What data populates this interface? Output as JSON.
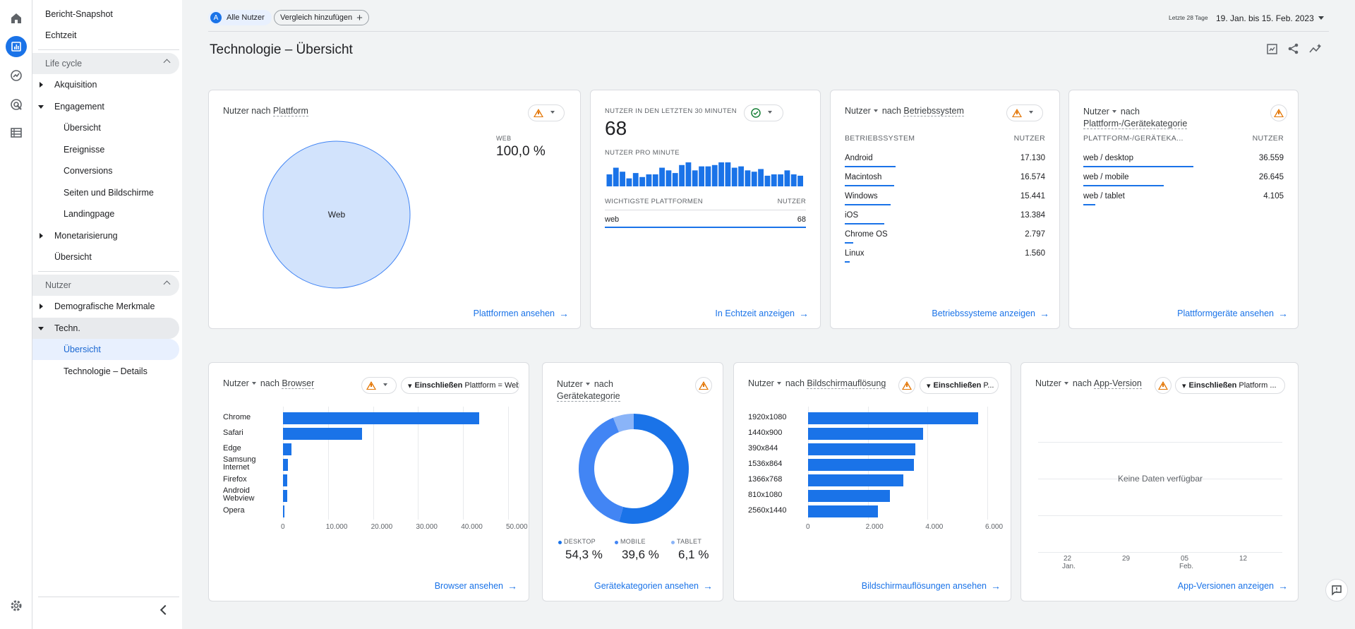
{
  "rail": {
    "icons": [
      "home-icon",
      "reports-icon",
      "explore-icon",
      "advertising-icon",
      "list-icon",
      "settings-icon"
    ]
  },
  "sidebar": {
    "top_items": [
      "Bericht-Snapshot",
      "Echtzeit"
    ],
    "lifecycle": {
      "header": "Life cycle",
      "akquisition": "Akquisition",
      "engagement": "Engagement",
      "engagement_items": [
        "Übersicht",
        "Ereignisse",
        "Conversions",
        "Seiten und Bildschirme",
        "Landingpage"
      ],
      "monetarisierung": "Monetarisierung",
      "uebersicht": "Übersicht"
    },
    "nutzer": {
      "header": "Nutzer",
      "demografie": "Demografische Merkmale",
      "techn": "Techn.",
      "techn_items": [
        "Übersicht",
        "Technologie – Details"
      ]
    }
  },
  "header": {
    "segment_letter": "A",
    "segment_label": "Alle Nutzer",
    "compare_label": "Vergleich hinzufügen",
    "date_prefix": "Letzte 28 Tage",
    "date_range": "19. Jan. bis 15. Feb. 2023"
  },
  "page": {
    "title": "Technologie – Übersicht"
  },
  "cards": {
    "platform": {
      "title_a": "Nutzer nach ",
      "title_b": "Plattform",
      "legend_label": "WEB",
      "legend_value": "100,0 %",
      "pie_label": "Web",
      "link": "Plattformen ansehen"
    },
    "realtime": {
      "title": "NUTZER IN DEN LETZTEN 30 MINUTEN",
      "value": "68",
      "per_minute": "NUTZER PRO MINUTE",
      "col1": "WICHTIGSTE PLATTFORMEN",
      "col2": "NUTZER",
      "row_label": "web",
      "row_value": "68",
      "link": "In Echtzeit anzeigen"
    },
    "os": {
      "metric": "Nutzer",
      "nach": "nach",
      "dim": "Betriebssystem",
      "col1": "BETRIEBSSYSTEM",
      "col2": "NUTZER",
      "rows": [
        {
          "label": "Android",
          "value": "17.130",
          "frac": 1.0
        },
        {
          "label": "Macintosh",
          "value": "16.574",
          "frac": 0.968
        },
        {
          "label": "Windows",
          "value": "15.441",
          "frac": 0.901
        },
        {
          "label": "iOS",
          "value": "13.384",
          "frac": 0.781
        },
        {
          "label": "Chrome OS",
          "value": "2.797",
          "frac": 0.163
        },
        {
          "label": "Linux",
          "value": "1.560",
          "frac": 0.091
        }
      ],
      "link": "Betriebssysteme anzeigen"
    },
    "device": {
      "metric": "Nutzer",
      "nach": "nach",
      "dim": "Plattform-/Gerätekategorie",
      "col1": "PLATTFORM-/GERÄTEKA...",
      "col2": "NUTZER",
      "rows": [
        {
          "label": "web / desktop",
          "value": "36.559",
          "frac": 1.0
        },
        {
          "label": "web / mobile",
          "value": "26.645",
          "frac": 0.729
        },
        {
          "label": "web / tablet",
          "value": "4.105",
          "frac": 0.112
        }
      ],
      "link": "Plattformgeräte ansehen"
    },
    "browser": {
      "metric": "Nutzer",
      "nach": "nach",
      "dim": "Browser",
      "filter_bold": "Einschließen",
      "filter_rest": "Plattform = Web",
      "link": "Browser ansehen"
    },
    "devcat": {
      "metric": "Nutzer",
      "nach": "nach",
      "dim": "Gerätekategorie",
      "link": "Gerätekategorien ansehen",
      "legend": [
        {
          "label": "DESKTOP",
          "value": "54,3 %"
        },
        {
          "label": "MOBILE",
          "value": "39,6 %"
        },
        {
          "label": "TABLET",
          "value": "6,1 %"
        }
      ]
    },
    "resolution": {
      "metric": "Nutzer",
      "nach": "nach",
      "dim": "Bildschirmauflösung",
      "filter_bold": "Einschließen",
      "filter_rest": "P...",
      "link": "Bildschirmauflösungen ansehen"
    },
    "appver": {
      "metric": "Nutzer",
      "nach": "nach",
      "dim": "App-Version",
      "filter_bold": "Einschließen",
      "filter_rest": "Platform ...",
      "no_data": "Keine Daten verfügbar",
      "x_ticks": [
        {
          "day": "22",
          "month": "Jan."
        },
        {
          "day": "29",
          "month": ""
        },
        {
          "day": "05",
          "month": "Feb."
        },
        {
          "day": "12",
          "month": ""
        }
      ],
      "link": "App-Versionen anzeigen"
    }
  },
  "colors": {
    "accent": "#1a73e8",
    "light_pie": "#d2e3fc",
    "mobile": "#4285f4",
    "tablet": "#8ab4f8",
    "warn": "#e37400",
    "ok": "#188038"
  },
  "chart_data": [
    {
      "type": "pie",
      "title": "Nutzer nach Plattform",
      "categories": [
        "Web"
      ],
      "values": [
        100.0
      ]
    },
    {
      "type": "bar",
      "title": "Nutzer pro Minute",
      "values": [
        9,
        14,
        11,
        6,
        10,
        7,
        9,
        9,
        14,
        12,
        10,
        16,
        18,
        12,
        15,
        15,
        16,
        18,
        18,
        14,
        15,
        12,
        11,
        13,
        8,
        9,
        9,
        12,
        9,
        8
      ]
    },
    {
      "type": "bar",
      "orientation": "horizontal",
      "title": "Nutzer nach Browser",
      "categories": [
        "Chrome",
        "Safari",
        "Edge",
        "Samsung Internet",
        "Firefox",
        "Android Webview",
        "Opera"
      ],
      "values": [
        43500,
        17500,
        1900,
        1100,
        1000,
        900,
        300
      ],
      "xlim": [
        0,
        50000
      ],
      "ticks": [
        "0",
        "10.000",
        "20.000",
        "30.000",
        "40.000",
        "50.000"
      ]
    },
    {
      "type": "pie",
      "donut": true,
      "title": "Nutzer nach Gerätekategorie",
      "categories": [
        "DESKTOP",
        "MOBILE",
        "TABLET"
      ],
      "values": [
        54.3,
        39.6,
        6.1
      ]
    },
    {
      "type": "bar",
      "orientation": "horizontal",
      "title": "Nutzer nach Bildschirmauflösung",
      "categories": [
        "1920x1080",
        "1440x900",
        "390x844",
        "1536x864",
        "1366x768",
        "810x1080",
        "2560x1440"
      ],
      "values": [
        5700,
        3850,
        3600,
        3550,
        3200,
        2750,
        2350
      ],
      "xlim": [
        0,
        6000
      ],
      "ticks": [
        "0",
        "2.000",
        "4.000",
        "6.000"
      ]
    }
  ]
}
